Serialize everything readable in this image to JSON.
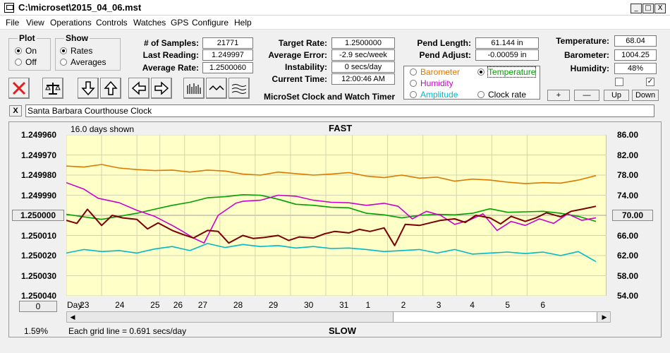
{
  "window": {
    "title": "C:\\microset\\2015_04_06.mst",
    "min": "_",
    "max": "□",
    "close": "X"
  },
  "menu": [
    "File",
    "View",
    "Operations",
    "Controls",
    "Watches",
    "GPS",
    "Configure",
    "Help"
  ],
  "plot_group": {
    "title": "Plot",
    "on": "On",
    "off": "Off",
    "selected": "On"
  },
  "show_group": {
    "title": "Show",
    "rates": "Rates",
    "averages": "Averages",
    "selected": "Rates"
  },
  "stats": {
    "samples_label": "# of Samples:",
    "samples": "21771",
    "last_label": "Last Reading:",
    "last": "1.249997",
    "avg_label": "Average Rate:",
    "avg": "1.2500060",
    "target_label": "Target Rate:",
    "target": "1.2500000",
    "avgerr_label": "Average Error:",
    "avgerr": "-2.9 sec/week",
    "instab_label": "Instability:",
    "instab": "0 secs/day",
    "time_label": "Current Time:",
    "time": "12:00:46 AM",
    "pendlen_label": "Pend Length:",
    "pendlen": "61.144 in",
    "pendadj_label": "Pend Adjust:",
    "pendadj": "-0.00059 in",
    "temp_label": "Temperature:",
    "temp": "68.04",
    "baro_label": "Barometer:",
    "baro": "1004.25",
    "hum_label": "Humidity:",
    "hum": "48%"
  },
  "app_name": "MicroSet Clock and Watch Timer",
  "right_axis_options": {
    "barometer": "Barometer",
    "temperature": "Temperature",
    "humidity": "Humidity",
    "amplitude": "Amplitude",
    "clockrate": "Clock rate",
    "selected": "Temperature"
  },
  "colors": {
    "barometer": "#e07800",
    "temperature": "#00a000",
    "humidity": "#cc00cc",
    "amplitude": "#00b8c8",
    "clockrate": "#7a0000",
    "plotbg": "#ffffc8"
  },
  "scale_buttons": {
    "plus": "+",
    "minus": "—",
    "up": "Up",
    "down": "Down"
  },
  "watch_name": "Santa Barbara Courthouse Clock",
  "clear_label": "X",
  "chart": {
    "days_shown": "16.0 days shown",
    "top_label": "FAST",
    "bottom_label": "SLOW",
    "grid_note": "Each grid line = 0.691 secs/day",
    "percent": "1.59%",
    "day_prefix": "Day:",
    "left_center_btn": "1.250000",
    "right_center_btn": "70.00",
    "bottom_left_btn": "0"
  },
  "chart_data": {
    "type": "line",
    "left_ticks": [
      "1.249960",
      "1.249970",
      "1.249980",
      "1.249990",
      "1.250000",
      "1.250010",
      "1.250020",
      "1.250030",
      "1.250040"
    ],
    "right_ticks": [
      "86.00",
      "82.00",
      "78.00",
      "74.00",
      "70.00",
      "66.00",
      "62.00",
      "58.00",
      "54.00"
    ],
    "ylim_left": [
      1.24996,
      1.25004
    ],
    "ylim_right": [
      54,
      86
    ],
    "days": [
      "23",
      "24",
      "25",
      "26",
      "27",
      "28",
      "29",
      "30",
      "31",
      "1",
      "2",
      "3",
      "4",
      "5",
      "6"
    ],
    "day_positions": [
      0.5,
      1.5,
      2.5,
      3.15,
      3.85,
      4.85,
      5.85,
      6.85,
      7.85,
      8.6,
      9.6,
      10.6,
      11.55,
      12.55,
      13.55
    ],
    "xlim": [
      0,
      15.3
    ],
    "series": [
      {
        "name": "Barometer",
        "axis": "right",
        "x": [
          0,
          0.5,
          1,
          1.5,
          2,
          2.5,
          3,
          3.5,
          4,
          4.5,
          5,
          5.5,
          6,
          6.5,
          7,
          7.5,
          8,
          8.5,
          9,
          9.5,
          10,
          10.5,
          11,
          11.5,
          12,
          12.5,
          13,
          13.5,
          14,
          14.5,
          15
        ],
        "y": [
          79.8,
          79.6,
          80.1,
          79.4,
          79.1,
          78.9,
          79.0,
          78.6,
          79.0,
          78.8,
          78.2,
          78.0,
          78.6,
          78.3,
          78.0,
          78.2,
          78.5,
          77.8,
          77.5,
          78.0,
          77.4,
          77.6,
          76.8,
          77.2,
          77.0,
          76.6,
          76.3,
          76.5,
          76.4,
          77.0,
          77.9
        ]
      },
      {
        "name": "Temperature",
        "axis": "right",
        "x": [
          0,
          1,
          2,
          2.5,
          3,
          3.5,
          4,
          4.5,
          5,
          5.5,
          6,
          6.5,
          7,
          7.5,
          8,
          8.5,
          9,
          9.5,
          10,
          10.5,
          11,
          11.5,
          12,
          12.5,
          13,
          13.5,
          14,
          14.5,
          15
        ],
        "y": [
          70.2,
          69.2,
          70.4,
          71.2,
          72.0,
          72.6,
          73.5,
          73.7,
          74.1,
          74.0,
          73.2,
          72.2,
          72.0,
          71.6,
          71.5,
          70.4,
          70.1,
          69.5,
          70.0,
          70.2,
          70.1,
          70.4,
          71.3,
          70.6,
          70.7,
          70.8,
          70.4,
          69.8,
          68.8
        ]
      },
      {
        "name": "Humidity",
        "axis": "right",
        "x": [
          0,
          0.5,
          0.9,
          1.5,
          2,
          2.5,
          3,
          3.3,
          3.6,
          3.9,
          4.3,
          4.8,
          5,
          5.5,
          6,
          6.5,
          7,
          7.5,
          8,
          8.5,
          9,
          9.4,
          9.8,
          10.2,
          10.6,
          11,
          11.4,
          11.8,
          12.2,
          12.6,
          13,
          13.4,
          13.8,
          14.2,
          14.6,
          15
        ],
        "y": [
          76.5,
          75.2,
          73.4,
          72.5,
          71.0,
          69.8,
          68.0,
          66.8,
          65.5,
          64.5,
          70.0,
          72.4,
          72.8,
          73.0,
          74.0,
          73.8,
          73.0,
          72.6,
          72.5,
          72.0,
          72.4,
          71.8,
          69.3,
          70.8,
          70.0,
          68.2,
          69.0,
          70.3,
          67.0,
          68.8,
          68.0,
          69.3,
          68.4,
          70.3,
          69.0,
          69.5
        ]
      },
      {
        "name": "Amplitude",
        "axis": "right",
        "x": [
          0,
          0.5,
          1,
          1.5,
          2,
          2.5,
          3,
          3.5,
          4,
          4.5,
          5,
          5.5,
          6,
          6.5,
          7,
          7.5,
          8,
          8.5,
          9,
          9.5,
          10,
          10.5,
          11,
          11.5,
          12,
          12.5,
          13,
          13.5,
          14,
          14.5,
          15
        ],
        "y": [
          62.5,
          63.2,
          62.8,
          63.0,
          62.5,
          63.3,
          63.8,
          63.0,
          64.4,
          63.6,
          64.2,
          63.8,
          64.0,
          63.5,
          63.8,
          63.4,
          63.5,
          63.2,
          62.8,
          63.0,
          63.2,
          62.5,
          63.2,
          62.3,
          62.5,
          62.7,
          62.4,
          62.7,
          62.0,
          62.8,
          60.8
        ]
      },
      {
        "name": "Clock rate",
        "axis": "right",
        "x": [
          0,
          0.3,
          0.6,
          1,
          1.3,
          1.6,
          2,
          2.3,
          2.6,
          3,
          3.3,
          3.6,
          4,
          4.3,
          4.6,
          5,
          5.3,
          5.6,
          6,
          6.3,
          6.6,
          7,
          7.3,
          7.6,
          8,
          8.3,
          8.6,
          9,
          9.3,
          9.6,
          10,
          10.3,
          10.6,
          11,
          11.3,
          11.6,
          12,
          12.3,
          12.6,
          13,
          13.3,
          13.6,
          14,
          14.3,
          14.6,
          15
        ],
        "y": [
          69.0,
          68.4,
          71.2,
          68.0,
          70.0,
          69.5,
          69.2,
          67.3,
          68.5,
          67.0,
          66.2,
          65.5,
          67.0,
          66.8,
          64.5,
          66.0,
          65.4,
          65.6,
          66.0,
          65.0,
          65.7,
          65.5,
          66.3,
          66.8,
          66.5,
          67.2,
          66.8,
          67.5,
          64.0,
          68.2,
          68.0,
          68.5,
          69.0,
          69.3,
          68.6,
          70.0,
          69.5,
          68.3,
          69.8,
          68.8,
          69.5,
          70.5,
          69.7,
          70.8,
          71.2,
          71.8
        ]
      }
    ]
  }
}
